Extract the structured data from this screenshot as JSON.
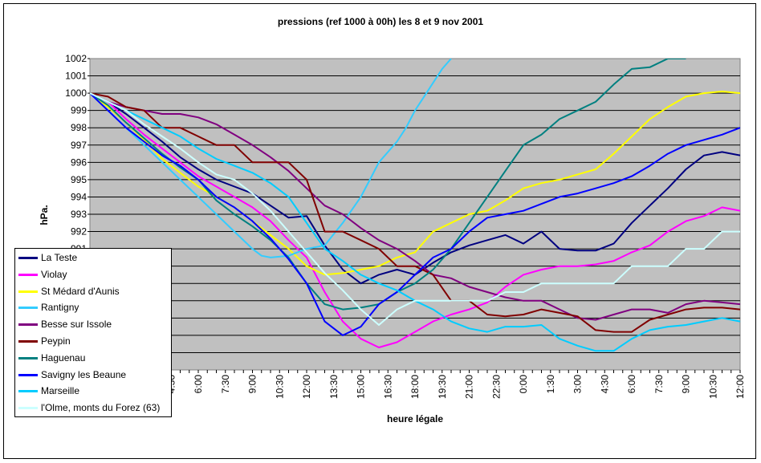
{
  "chart_data": {
    "type": "line",
    "title": "pressions (ref 1000 à 00h)  les 8 et 9 nov 2001",
    "xlabel": "heure légale",
    "ylabel": "hPa.",
    "x_range_hours": [
      0,
      36
    ],
    "ylim": [
      984,
      1002
    ],
    "y_ticks": [
      "1002",
      "1001",
      "1000",
      "999",
      "998",
      "997",
      "996",
      "995",
      "994",
      "993",
      "992",
      "991"
    ],
    "x_tick_labels": [
      "4:30",
      "6:00",
      "7:30",
      "9:00",
      "10:30",
      "12:00",
      "13:30",
      "15:00",
      "16:30",
      "18:00",
      "19:30",
      "21:00",
      "22:30",
      "0:00",
      "1:30",
      "3:00",
      "4:30",
      "6:00",
      "7:30",
      "9:00",
      "10:30",
      "12:00"
    ],
    "x_tick_hours": [
      4.5,
      6,
      7.5,
      9,
      10.5,
      12,
      13.5,
      15,
      16.5,
      18,
      19.5,
      21,
      22.5,
      24,
      25.5,
      27,
      28.5,
      30,
      31.5,
      33,
      34.5,
      36
    ],
    "series": [
      {
        "name": "La Teste",
        "color": "#000080",
        "x": [
          0,
          1,
          2,
          3,
          4,
          5,
          6,
          7,
          8,
          9,
          10,
          11,
          12,
          13,
          14,
          15,
          16,
          17,
          18,
          19,
          20,
          21,
          22,
          23,
          24,
          25,
          26,
          27,
          28,
          29,
          30,
          31,
          32,
          33,
          34,
          35,
          36
        ],
        "values": [
          1000,
          999.5,
          998.8,
          998,
          997.2,
          996.3,
          995.6,
          995,
          994.6,
          994.2,
          993.5,
          992.8,
          992.9,
          991.2,
          989.8,
          989,
          989.5,
          989.8,
          989.5,
          990.2,
          990.8,
          991.2,
          991.5,
          991.8,
          991.3,
          992,
          991,
          990.9,
          990.9,
          991.3,
          992.5,
          993.5,
          994.5,
          995.6,
          996.4,
          996.6,
          996.4
        ]
      },
      {
        "name": "Violay",
        "color": "#FF00FF",
        "x": [
          0,
          1,
          2,
          3,
          4,
          5,
          6,
          7,
          8,
          9,
          10,
          11,
          12,
          13,
          14,
          15,
          16,
          17,
          18,
          19,
          20,
          21,
          22,
          23,
          24,
          25,
          26,
          27,
          28,
          29,
          30,
          31,
          32,
          33,
          34,
          35,
          36
        ],
        "values": [
          1000,
          999.5,
          998.5,
          997.6,
          996.8,
          996,
          995.2,
          994.6,
          994,
          993.4,
          992.6,
          991.5,
          990.5,
          988.5,
          986.8,
          985.8,
          985.3,
          985.6,
          986.2,
          986.8,
          987.2,
          987.5,
          987.9,
          988.8,
          989.5,
          989.8,
          990,
          990,
          990.1,
          990.3,
          990.8,
          991.2,
          992,
          992.6,
          992.9,
          993.4,
          993.2
        ]
      },
      {
        "name": "St Médard d'Aunis",
        "color": "#FFFF00",
        "x": [
          0,
          1,
          2,
          3,
          4,
          5,
          6,
          7,
          8,
          9,
          10,
          11,
          12,
          13,
          14,
          15,
          16,
          17,
          18,
          19,
          20,
          21,
          22,
          23,
          24,
          25,
          26,
          27,
          28,
          29,
          30,
          31,
          32,
          33,
          34,
          35,
          36
        ],
        "values": [
          1000,
          999.2,
          998.3,
          997.3,
          996.2,
          995.4,
          994.6,
          994,
          993.4,
          992.6,
          991.8,
          991,
          990,
          989.5,
          989.6,
          989.8,
          990,
          990.5,
          990.8,
          992,
          992.5,
          993,
          993.2,
          993.8,
          994.5,
          994.8,
          995,
          995.3,
          995.6,
          996.5,
          997.5,
          998.5,
          999.2,
          999.8,
          1000,
          1000.1,
          1000
        ]
      },
      {
        "name": "Rantigny",
        "color": "#33CCFF",
        "x": [
          0,
          1,
          2,
          3,
          4,
          5,
          6,
          7,
          8,
          9,
          9.5,
          10,
          11,
          12,
          13,
          14,
          15,
          15.5,
          16,
          17,
          17.5,
          18,
          18.5,
          19,
          19.5,
          20
        ],
        "values": [
          1000,
          999,
          998,
          997,
          996,
          995,
          994,
          993,
          992,
          991,
          990.6,
          990.5,
          990.6,
          991,
          991.2,
          992.5,
          994,
          995,
          996,
          997.2,
          998,
          999,
          999.8,
          1000.6,
          1001.4,
          1002
        ]
      },
      {
        "name": "Besse sur Issole",
        "color": "#800080",
        "x": [
          0,
          1,
          2,
          3,
          4,
          5,
          6,
          7,
          8,
          9,
          10,
          11,
          12,
          13,
          14,
          15,
          16,
          17,
          18,
          19,
          20,
          21,
          22,
          23,
          24,
          25,
          26,
          27,
          28,
          29,
          30,
          31,
          32,
          33,
          34,
          35,
          36
        ],
        "values": [
          1000,
          999.5,
          999.2,
          999,
          998.8,
          998.8,
          998.6,
          998.2,
          997.6,
          997,
          996.3,
          995.5,
          994.5,
          993.5,
          993,
          992.2,
          991.5,
          991,
          990.3,
          989.5,
          989.3,
          988.8,
          988.5,
          988.2,
          988,
          988,
          987.5,
          987,
          986.9,
          987.2,
          987.5,
          987.5,
          987.3,
          987.8,
          988,
          987.9,
          987.8
        ]
      },
      {
        "name": "Peypin",
        "color": "#800000",
        "x": [
          0,
          1,
          2,
          3,
          4,
          5,
          6,
          7,
          8,
          9,
          10,
          11,
          12,
          13,
          14,
          15,
          16,
          17,
          18,
          19,
          20,
          21,
          22,
          23,
          24,
          25,
          26,
          27,
          28,
          29,
          30,
          31,
          32,
          33,
          34,
          35,
          36
        ],
        "values": [
          1000,
          999.8,
          999.2,
          999,
          998,
          998,
          997.5,
          997,
          997,
          996,
          996,
          996,
          995,
          992,
          992,
          991.5,
          991,
          990,
          990,
          989.5,
          988,
          988,
          987.2,
          987.1,
          987.2,
          987.5,
          987.3,
          987.1,
          986.3,
          986.2,
          986.2,
          986.9,
          987.2,
          987.5,
          987.6,
          987.6,
          987.5
        ]
      },
      {
        "name": "Haguenau",
        "color": "#008080",
        "x": [
          0,
          1,
          2,
          3,
          4,
          5,
          6,
          7,
          8,
          9,
          10,
          11,
          12,
          13,
          14,
          15,
          16,
          17,
          18,
          19,
          20,
          21,
          22,
          23,
          24,
          25,
          26,
          27,
          28,
          29,
          30,
          31,
          32,
          33
        ],
        "values": [
          1000,
          999.3,
          998.3,
          997.4,
          996.5,
          995.7,
          995,
          993.8,
          993,
          992.3,
          991.5,
          990.5,
          989,
          987.8,
          987.5,
          987.6,
          987.8,
          988.5,
          989,
          989.8,
          991,
          992.5,
          994,
          995.5,
          997,
          997.6,
          998.5,
          999,
          999.5,
          1000.5,
          1001.4,
          1001.5,
          1002,
          1002
        ]
      },
      {
        "name": "Savigny les Beaune",
        "color": "#0000FF",
        "x": [
          0,
          1,
          2,
          3,
          4,
          5,
          6,
          7,
          8,
          9,
          10,
          11,
          12,
          13,
          14,
          15,
          16,
          17,
          18,
          19,
          20,
          21,
          22,
          23,
          24,
          25,
          26,
          27,
          28,
          29,
          30,
          31,
          32,
          33,
          34,
          35,
          36
        ],
        "values": [
          1000,
          999,
          998,
          997.2,
          996.4,
          995.8,
          995,
          994,
          993.4,
          992.6,
          991.6,
          990.4,
          989,
          986.8,
          986,
          986.5,
          987.8,
          988.5,
          989.5,
          990.5,
          991,
          992,
          992.8,
          993,
          993.2,
          993.6,
          994,
          994.2,
          994.5,
          994.8,
          995.2,
          995.8,
          996.5,
          997,
          997.3,
          997.6,
          998
        ]
      },
      {
        "name": "Marseille",
        "color": "#00CCFF",
        "x": [
          0,
          1,
          2,
          3,
          4,
          5,
          6,
          7,
          8,
          9,
          10,
          11,
          12,
          13,
          14,
          15,
          16,
          17,
          18,
          19,
          20,
          21,
          22,
          23,
          24,
          25,
          26,
          27,
          28,
          29,
          30,
          31,
          32,
          33,
          34,
          35,
          36
        ],
        "values": [
          1000,
          999.5,
          999,
          998.5,
          998,
          997.5,
          996.8,
          996.2,
          995.8,
          995.4,
          994.8,
          994,
          992.5,
          991,
          990.3,
          989.5,
          989,
          988.6,
          988,
          987.5,
          986.8,
          986.4,
          986.2,
          986.5,
          986.5,
          986.6,
          985.8,
          985.4,
          985.1,
          985.1,
          985.8,
          986.3,
          986.5,
          986.6,
          986.8,
          987,
          986.8
        ]
      },
      {
        "name": "l'Olme, monts du Forez (63)",
        "color": "#CCFFFF",
        "x": [
          0,
          1,
          2,
          3,
          4,
          5,
          6,
          7,
          8,
          9,
          10,
          11,
          12,
          13,
          14,
          15,
          16,
          17,
          18,
          19,
          20,
          21,
          22,
          23,
          24,
          25,
          26,
          27,
          28,
          29,
          30,
          31,
          32,
          33,
          34,
          35,
          36
        ],
        "values": [
          1000,
          999.5,
          999,
          998.2,
          997.5,
          996.8,
          996,
          995.3,
          995,
          994.2,
          993.2,
          992,
          990.8,
          989.6,
          988.6,
          987.5,
          986.6,
          987.5,
          988,
          988,
          988,
          988,
          988,
          988.5,
          988.5,
          989,
          989,
          989,
          989,
          989,
          990,
          990,
          990,
          991,
          991,
          992,
          992
        ]
      }
    ]
  }
}
